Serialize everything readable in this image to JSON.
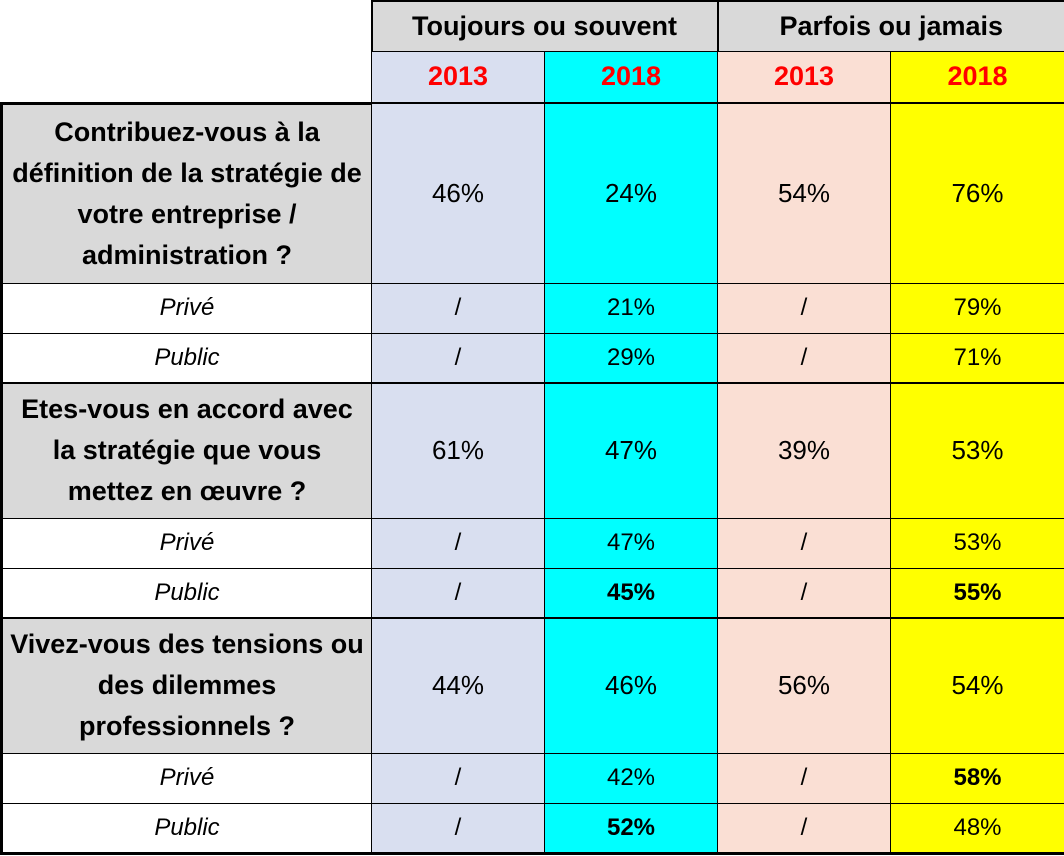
{
  "header": {
    "groups": [
      "Toujours ou souvent",
      "Parfois ou jamais"
    ],
    "years": [
      "2013",
      "2018",
      "2013",
      "2018"
    ]
  },
  "sections": [
    {
      "question": "Contribuez-vous à la définition de la stratégie de votre entreprise / administration ?",
      "total": [
        "46%",
        "24%",
        "54%",
        "76%"
      ],
      "prive": {
        "label": "Privé",
        "values": [
          "/",
          "21%",
          "/",
          "79%"
        ]
      },
      "public": {
        "label": "Public",
        "values": [
          "/",
          "29%",
          "/",
          "71%"
        ]
      }
    },
    {
      "question": "Etes-vous en accord avec la stratégie que vous mettez en œuvre ?",
      "total": [
        "61%",
        "47%",
        "39%",
        "53%"
      ],
      "prive": {
        "label": "Privé",
        "values": [
          "/",
          "47%",
          "/",
          "53%"
        ]
      },
      "public": {
        "label": "Public",
        "values": [
          "/",
          "45%",
          "/",
          "55%"
        ]
      }
    },
    {
      "question": "Vivez-vous des tensions ou des dilemmes professionnels ?",
      "total": [
        "44%",
        "46%",
        "56%",
        "54%"
      ],
      "prive": {
        "label": "Privé",
        "values": [
          "/",
          "42%",
          "/",
          "58%"
        ]
      },
      "public": {
        "label": "Public",
        "values": [
          "/",
          "52%",
          "/",
          "48%"
        ]
      }
    }
  ],
  "colors": {
    "toujours_2013": "#d9dff0",
    "toujours_2018": "#00ffff",
    "parfois_2013": "#fadfd4",
    "parfois_2018": "#ffff00",
    "label_bg": "#d9d9d9",
    "year_text": "#ff0000"
  },
  "chart_data": {
    "type": "table",
    "columns": [
      "Toujours ou souvent 2013",
      "Toujours ou souvent 2018",
      "Parfois ou jamais 2013",
      "Parfois ou jamais 2018"
    ],
    "rows": [
      {
        "label": "Contribuez-vous à la définition de la stratégie de votre entreprise / administration ?",
        "values": [
          46,
          24,
          54,
          76
        ]
      },
      {
        "label": "Privé",
        "values": [
          null,
          21,
          null,
          79
        ]
      },
      {
        "label": "Public",
        "values": [
          null,
          29,
          null,
          71
        ]
      },
      {
        "label": "Etes-vous en accord avec la stratégie que vous mettez en œuvre ?",
        "values": [
          61,
          47,
          39,
          53
        ]
      },
      {
        "label": "Privé",
        "values": [
          null,
          47,
          null,
          53
        ]
      },
      {
        "label": "Public",
        "values": [
          null,
          45,
          null,
          55
        ]
      },
      {
        "label": "Vivez-vous des tensions ou des dilemmes professionnels ?",
        "values": [
          44,
          46,
          56,
          54
        ]
      },
      {
        "label": "Privé",
        "values": [
          null,
          42,
          null,
          58
        ]
      },
      {
        "label": "Public",
        "values": [
          null,
          52,
          null,
          48
        ]
      }
    ],
    "unit": "%"
  }
}
